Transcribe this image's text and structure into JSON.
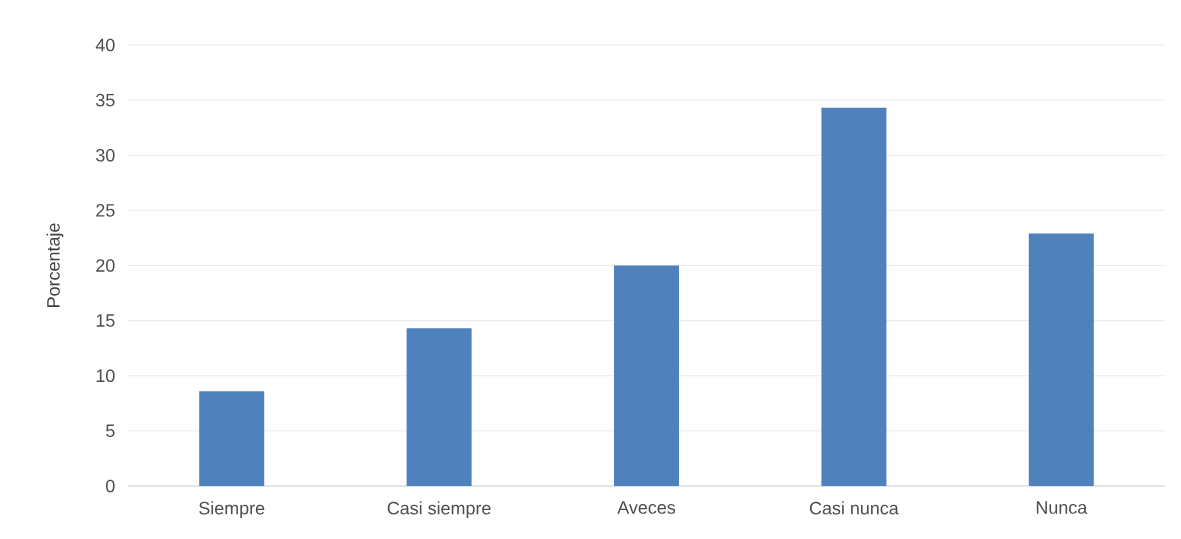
{
  "chart_data": {
    "type": "bar",
    "ylabel": "Porcentaje",
    "categories": [
      "Siempre",
      "Casi siempre",
      "Aveces",
      "Casi nunca",
      "Nunca"
    ],
    "values": [
      8.6,
      14.3,
      20.0,
      34.3,
      22.9
    ],
    "color": "#4f81bd",
    "ylim": [
      0,
      40
    ],
    "yticks": [
      0,
      5,
      10,
      15,
      20,
      25,
      30,
      35,
      40
    ],
    "grid": "y"
  }
}
